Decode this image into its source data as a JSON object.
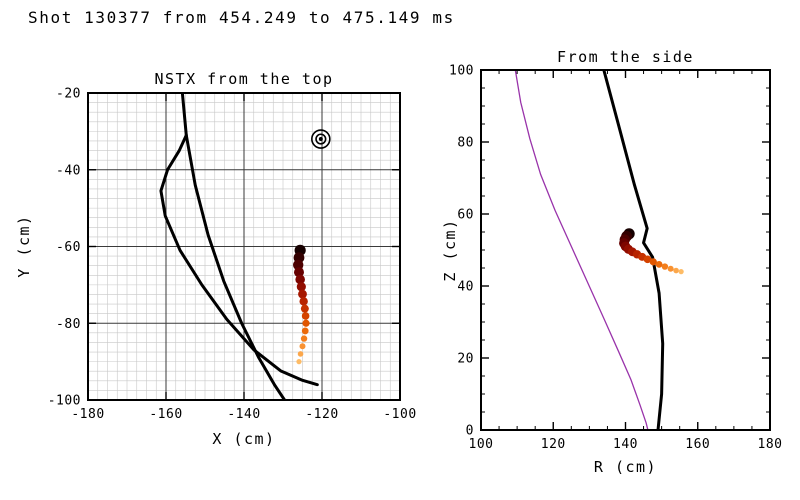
{
  "header": {
    "title": "Shot 130377 from 454.249 to 475.149 ms"
  },
  "colors": {
    "background": "#ffffff",
    "frame": "#000000",
    "wall": "#000000",
    "boundary": "#9933aa",
    "grid_minor": "#c8c8c8",
    "grid_major": "#3a3a3a",
    "trajectory_gradient": [
      "#160000",
      "#330000",
      "#4d0000",
      "#660000",
      "#7d0500",
      "#920d00",
      "#a61700",
      "#b72300",
      "#c63200",
      "#d44300",
      "#e05600",
      "#eb6a0a",
      "#f37e1c",
      "#f99232",
      "#fca74b",
      "#febc66"
    ]
  },
  "chart_data": [
    {
      "id": "top_view",
      "type": "scatter",
      "title": "NSTX from the top",
      "xlabel": "X (cm)",
      "ylabel": "Y (cm)",
      "xlim": [
        -180,
        -100
      ],
      "ylim": [
        -100,
        -20
      ],
      "xticks": [
        -180,
        -160,
        -140,
        -120,
        -100
      ],
      "yticks": [
        -100,
        -80,
        -60,
        -40,
        -20
      ],
      "grid": {
        "minor_step": 2.5,
        "major_step": 20
      },
      "walls": [
        {
          "x": [
            -155.8,
            -154.8,
            -152.5,
            -149.2,
            -145.2,
            -140.6,
            -136.2,
            -132.2,
            -129.6
          ],
          "y": [
            -20,
            -31,
            -44,
            -57,
            -69,
            -80,
            -89,
            -96,
            -100
          ]
        },
        {
          "x": [
            -154.8,
            -156.6,
            -159.6,
            -161.3,
            -160.2,
            -156.4,
            -150.8,
            -144.4,
            -137.4,
            -130.6,
            -125.2,
            -121.2
          ],
          "y": [
            -31,
            -35,
            -40,
            -45.5,
            -52,
            -61,
            -70,
            -79,
            -87,
            -92.4,
            -94.8,
            -96
          ]
        }
      ],
      "marker": {
        "x": -120.3,
        "y": -32,
        "shape": "concentric-circles"
      },
      "trajectory": {
        "x": [
          -125.6,
          -125.9,
          -126.1,
          -125.9,
          -125.6,
          -125.3,
          -125.0,
          -124.7,
          -124.4,
          -124.2,
          -124.1,
          -124.3,
          -124.6,
          -125.0,
          -125.5,
          -125.9
        ],
        "y": [
          -61.0,
          -62.9,
          -64.8,
          -66.7,
          -68.6,
          -70.5,
          -72.4,
          -74.3,
          -76.2,
          -78.1,
          -80.0,
          -82.0,
          -84.0,
          -86.0,
          -88.0,
          -90.0
        ]
      }
    },
    {
      "id": "side_view",
      "type": "scatter",
      "title": "From the side",
      "xlabel": "R (cm)",
      "ylabel": "Z (cm)",
      "xlim": [
        100,
        180
      ],
      "ylim": [
        0,
        100
      ],
      "xticks": [
        100,
        120,
        140,
        160,
        180
      ],
      "yticks": [
        0,
        20,
        40,
        60,
        80,
        100
      ],
      "minor_tick_step": 5,
      "boundary": {
        "x": [
          109.5,
          111,
          113.5,
          116.5,
          120.5,
          125,
          129.5,
          134,
          138,
          141.5,
          144,
          145.7,
          146.2
        ],
        "y": [
          100,
          91,
          81,
          71,
          61,
          51,
          41,
          31,
          22,
          14,
          7,
          2,
          0
        ]
      },
      "walls": [
        {
          "x": [
            134,
            138,
            142.5,
            146,
            145,
            147.5,
            149.3,
            150.3,
            150.0,
            149.0
          ],
          "y": [
            100,
            85,
            68,
            56,
            52,
            48,
            38,
            24,
            10,
            0
          ]
        }
      ],
      "trajectory": {
        "x": [
          141.0,
          140.3,
          139.8,
          139.6,
          140.0,
          140.8,
          141.9,
          143.2,
          144.6,
          146.1,
          147.7,
          149.3,
          150.9,
          152.5,
          154.0,
          155.4
        ],
        "y": [
          54.5,
          53.8,
          52.9,
          51.9,
          51.0,
          50.2,
          49.5,
          48.8,
          48.1,
          47.4,
          46.7,
          46.0,
          45.4,
          44.8,
          44.3,
          44.0
        ]
      }
    }
  ]
}
